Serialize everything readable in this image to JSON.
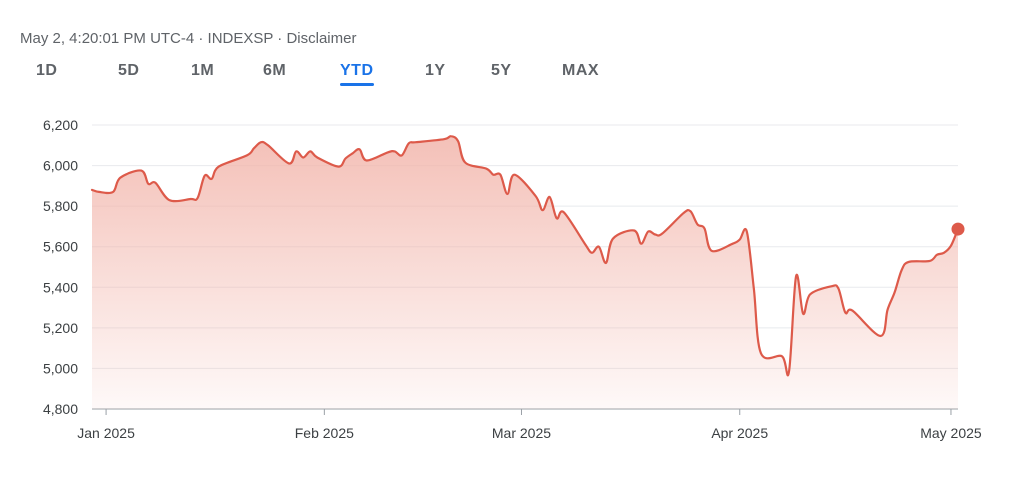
{
  "header": {
    "meta": "May 2, 4:20:01 PM UTC-4 · INDEXSP · Disclaimer"
  },
  "tabs": [
    {
      "label": "1D"
    },
    {
      "label": "5D"
    },
    {
      "label": "1M"
    },
    {
      "label": "6M"
    },
    {
      "label": "YTD",
      "active": true
    },
    {
      "label": "1Y"
    },
    {
      "label": "5Y"
    },
    {
      "label": "MAX"
    }
  ],
  "colors": {
    "line": "#dd5a4a",
    "fill_top": "#f2b5ab",
    "active_tab": "#1a73e8",
    "grid": "#e8eaed"
  },
  "chart_data": {
    "type": "area",
    "ylim": [
      4800,
      6200
    ],
    "y_ticks": [
      4800,
      5000,
      5200,
      5400,
      5600,
      5800,
      6000,
      6200
    ],
    "y_tick_labels": [
      "4,800",
      "5,000",
      "5,200",
      "5,400",
      "5,600",
      "5,800",
      "6,000",
      "6,200"
    ],
    "x_ticks": [
      {
        "label": "Jan 2025",
        "date": "2025-01-01"
      },
      {
        "label": "Feb 2025",
        "date": "2025-02-01"
      },
      {
        "label": "Mar 2025",
        "date": "2025-03-01"
      },
      {
        "label": "Apr 2025",
        "date": "2025-04-01"
      },
      {
        "label": "May 2025",
        "date": "2025-05-01"
      }
    ],
    "xlim": [
      "2024-12-30",
      "2025-05-02"
    ],
    "grid": true,
    "series": [
      {
        "points": [
          [
            "2024-12-30",
            5880
          ],
          [
            "2024-12-31",
            5870
          ],
          [
            "2025-01-02",
            5870
          ],
          [
            "2025-01-03",
            5940
          ],
          [
            "2025-01-06",
            5975
          ],
          [
            "2025-01-07",
            5910
          ],
          [
            "2025-01-08",
            5915
          ],
          [
            "2025-01-10",
            5830
          ],
          [
            "2025-01-13",
            5835
          ],
          [
            "2025-01-14",
            5840
          ],
          [
            "2025-01-15",
            5950
          ],
          [
            "2025-01-16",
            5935
          ],
          [
            "2025-01-17",
            5995
          ],
          [
            "2025-01-21",
            6050
          ],
          [
            "2025-01-22",
            6085
          ],
          [
            "2025-01-23",
            6115
          ],
          [
            "2025-01-24",
            6100
          ],
          [
            "2025-01-27",
            6010
          ],
          [
            "2025-01-28",
            6070
          ],
          [
            "2025-01-29",
            6040
          ],
          [
            "2025-01-30",
            6070
          ],
          [
            "2025-01-31",
            6040
          ],
          [
            "2025-02-03",
            5995
          ],
          [
            "2025-02-04",
            6035
          ],
          [
            "2025-02-05",
            6060
          ],
          [
            "2025-02-06",
            6080
          ],
          [
            "2025-02-07",
            6025
          ],
          [
            "2025-02-10",
            6065
          ],
          [
            "2025-02-11",
            6070
          ],
          [
            "2025-02-12",
            6050
          ],
          [
            "2025-02-13",
            6110
          ],
          [
            "2025-02-14",
            6115
          ],
          [
            "2025-02-18",
            6130
          ],
          [
            "2025-02-19",
            6145
          ],
          [
            "2025-02-20",
            6120
          ],
          [
            "2025-02-21",
            6015
          ],
          [
            "2025-02-24",
            5985
          ],
          [
            "2025-02-25",
            5955
          ],
          [
            "2025-02-26",
            5955
          ],
          [
            "2025-02-27",
            5860
          ],
          [
            "2025-02-28",
            5955
          ],
          [
            "2025-03-03",
            5850
          ],
          [
            "2025-03-04",
            5780
          ],
          [
            "2025-03-05",
            5845
          ],
          [
            "2025-03-06",
            5740
          ],
          [
            "2025-03-07",
            5770
          ],
          [
            "2025-03-10",
            5615
          ],
          [
            "2025-03-11",
            5570
          ],
          [
            "2025-03-12",
            5600
          ],
          [
            "2025-03-13",
            5520
          ],
          [
            "2025-03-14",
            5640
          ],
          [
            "2025-03-17",
            5680
          ],
          [
            "2025-03-18",
            5615
          ],
          [
            "2025-03-19",
            5675
          ],
          [
            "2025-03-20",
            5660
          ],
          [
            "2025-03-21",
            5665
          ],
          [
            "2025-03-24",
            5765
          ],
          [
            "2025-03-25",
            5775
          ],
          [
            "2025-03-26",
            5710
          ],
          [
            "2025-03-27",
            5690
          ],
          [
            "2025-03-28",
            5580
          ],
          [
            "2025-03-31",
            5615
          ],
          [
            "2025-04-01",
            5635
          ],
          [
            "2025-04-02",
            5675
          ],
          [
            "2025-04-03",
            5395
          ],
          [
            "2025-04-04",
            5075
          ],
          [
            "2025-04-07",
            5060
          ],
          [
            "2025-04-08",
            4985
          ],
          [
            "2025-04-09",
            5455
          ],
          [
            "2025-04-10",
            5270
          ],
          [
            "2025-04-11",
            5365
          ],
          [
            "2025-04-14",
            5405
          ],
          [
            "2025-04-15",
            5395
          ],
          [
            "2025-04-16",
            5275
          ],
          [
            "2025-04-17",
            5285
          ],
          [
            "2025-04-21",
            5160
          ],
          [
            "2025-04-22",
            5290
          ],
          [
            "2025-04-23",
            5375
          ],
          [
            "2025-04-24",
            5485
          ],
          [
            "2025-04-25",
            5525
          ],
          [
            "2025-04-28",
            5530
          ],
          [
            "2025-04-29",
            5560
          ],
          [
            "2025-04-30",
            5570
          ],
          [
            "2025-05-01",
            5605
          ],
          [
            "2025-05-02",
            5687
          ]
        ]
      }
    ]
  }
}
